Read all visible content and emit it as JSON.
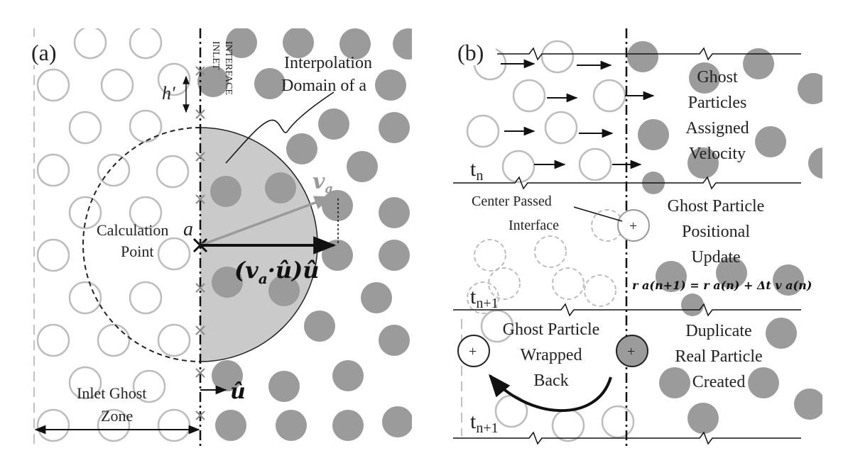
{
  "panel_a": {
    "label": "(a)",
    "inlet_interface": [
      "INLET",
      "INTERFACE"
    ],
    "h_prime": "h′",
    "interp_domain": [
      "Interpolation",
      "Domain of a"
    ],
    "calc_point": [
      "Calculation",
      "Point"
    ],
    "point_a": "a",
    "v_a": "v",
    "v_a_sub": "a",
    "projection": "(v",
    "projection_sub": "a",
    "projection_rest": "·û)û",
    "u_hat": "û",
    "ghost_zone": [
      "Inlet Ghost",
      "Zone"
    ]
  },
  "panel_b": {
    "label": "(b)",
    "row1_text": [
      "Ghost",
      "Particles",
      "Assigned",
      "Velocity"
    ],
    "row1_time": "t",
    "row1_time_sub": "n",
    "row2_left": [
      "Center Passed",
      "Interface"
    ],
    "row2_right": [
      "Ghost Particle",
      "Positional",
      "Update"
    ],
    "row2_equation": "r a(n+1) = r a(n) + Δt v a(n)",
    "row2_time": "t",
    "row2_time_sub": "n+1",
    "row3_left": [
      "Ghost Particle",
      "Wrapped",
      "Back"
    ],
    "row3_right": [
      "Duplicate",
      "Real Particle",
      "Created"
    ],
    "row3_time": "t",
    "row3_time_sub": "n+1",
    "plus": "+"
  },
  "colors": {
    "ghost_outline": "#b9b9b9",
    "real_fill": "#9b9b9b",
    "domain_fill": "#c8c8c8",
    "line": "#1a1a1a"
  }
}
